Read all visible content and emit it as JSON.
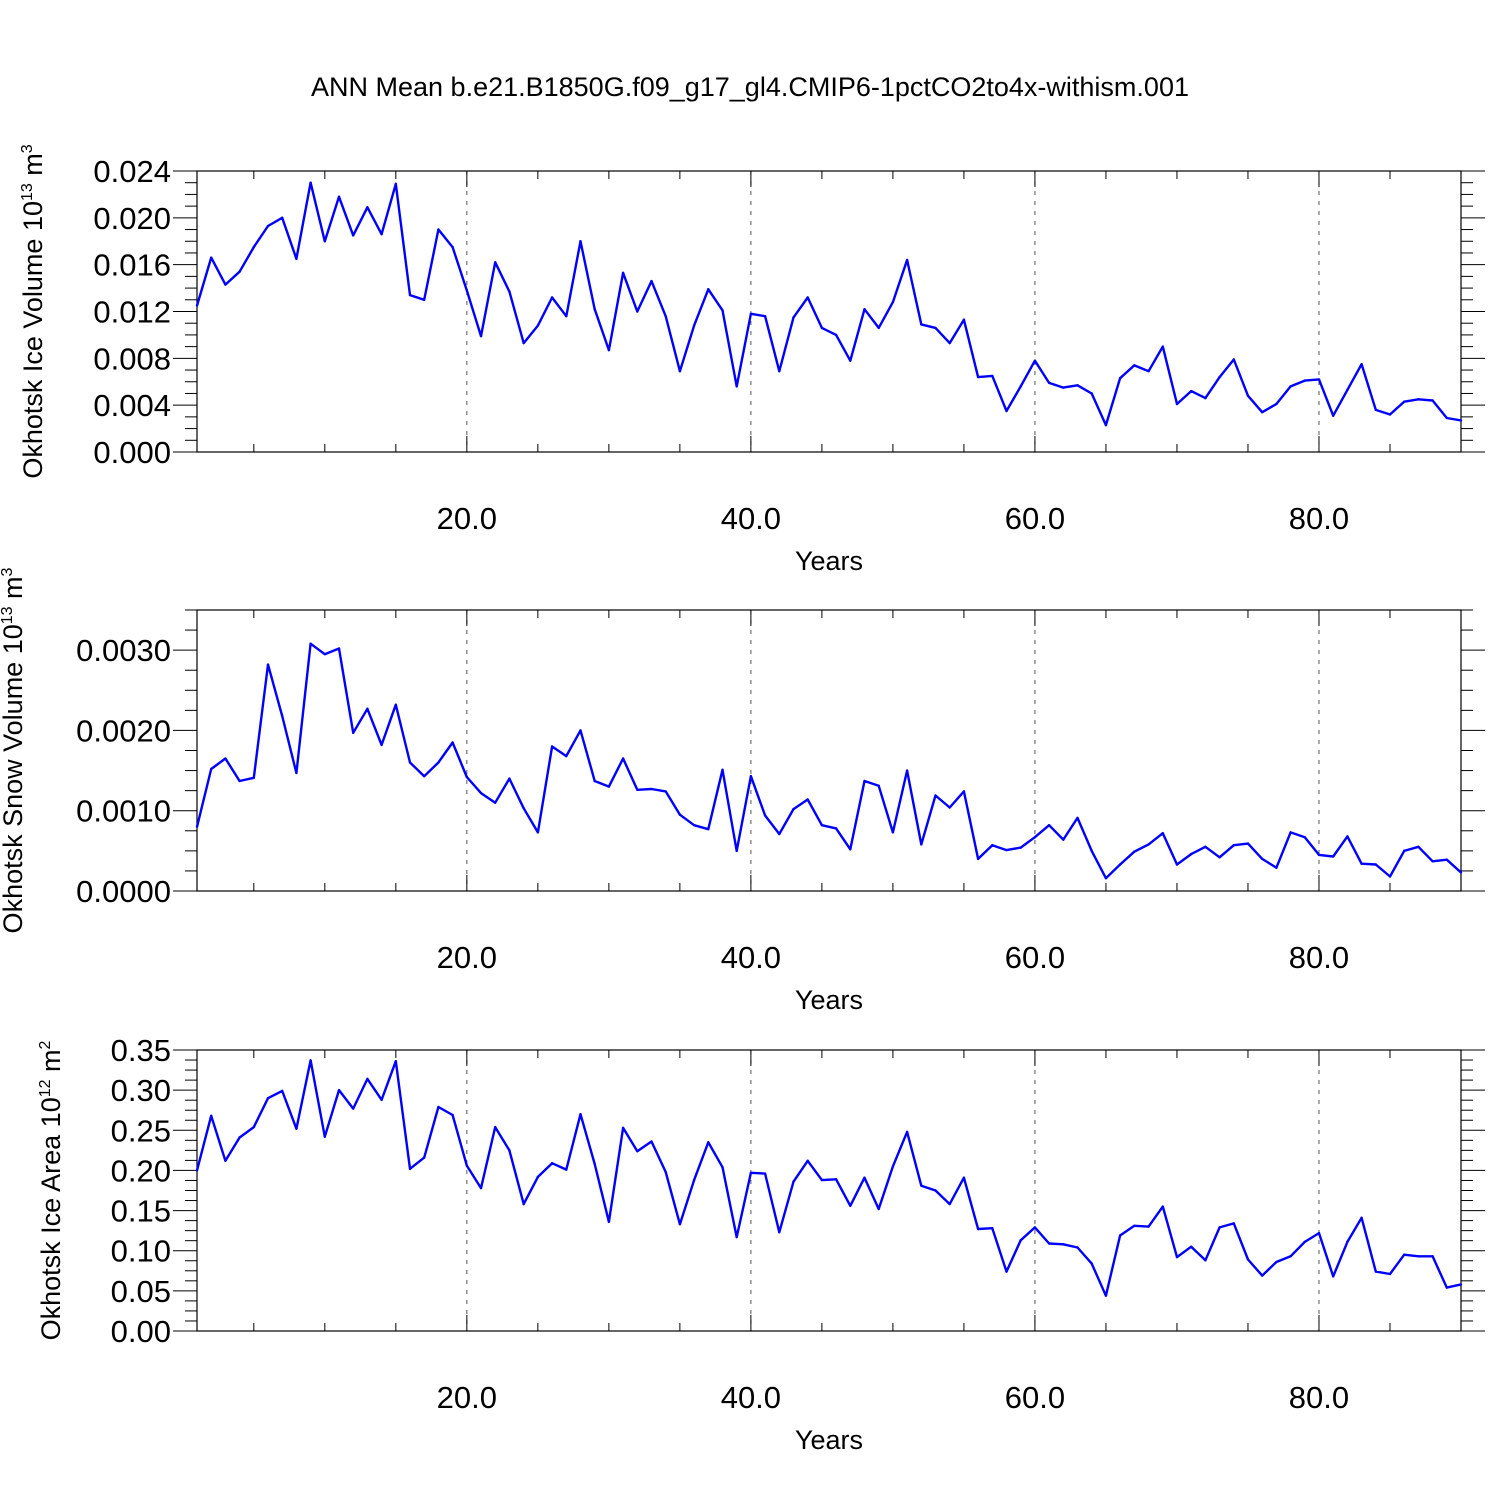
{
  "title": "ANN Mean b.e21.B1850G.f09_g17_gl4.CMIP6-1pctCO2to4x-withism.001",
  "colors": {
    "series": "#0000ff",
    "frame": "#000000",
    "grid": "#555555"
  },
  "chart_data": [
    {
      "type": "line",
      "ylabel": "Okhotsk Ice Volume 10",
      "ylabel_sup": "13",
      "ylabel_unit": "m",
      "ylabel_unit_sup": "3",
      "xlabel": "Years",
      "xlim": [
        1,
        90
      ],
      "ylim": [
        0,
        0.024
      ],
      "xticks": [
        20,
        40,
        60,
        80
      ],
      "xtick_labels": [
        "20.0",
        "40.0",
        "60.0",
        "80.0"
      ],
      "yticks": [
        0,
        0.004,
        0.008,
        0.012,
        0.016,
        0.02,
        0.024
      ],
      "ytick_labels": [
        "0.000",
        "0.004",
        "0.008",
        "0.012",
        "0.016",
        "0.020",
        "0.024"
      ],
      "grid": "vertical dashed at major x ticks",
      "x_start": 1,
      "values": [
        0.0125,
        0.0166,
        0.0143,
        0.0154,
        0.0175,
        0.0193,
        0.02,
        0.0165,
        0.023,
        0.018,
        0.0218,
        0.0185,
        0.0209,
        0.0186,
        0.0229,
        0.0134,
        0.013,
        0.019,
        0.0175,
        0.0138,
        0.0099,
        0.0162,
        0.0137,
        0.0093,
        0.0108,
        0.0132,
        0.0116,
        0.018,
        0.0122,
        0.0087,
        0.0153,
        0.012,
        0.0146,
        0.0116,
        0.0069,
        0.0108,
        0.0139,
        0.0121,
        0.0056,
        0.0118,
        0.0116,
        0.0069,
        0.0115,
        0.0132,
        0.0106,
        0.01,
        0.0078,
        0.0122,
        0.0106,
        0.0128,
        0.0164,
        0.0109,
        0.0106,
        0.0093,
        0.0113,
        0.0064,
        0.0065,
        0.0035,
        0.0056,
        0.0078,
        0.0059,
        0.0055,
        0.0057,
        0.005,
        0.0023,
        0.0063,
        0.0074,
        0.0069,
        0.009,
        0.0041,
        0.0052,
        0.0046,
        0.0064,
        0.0079,
        0.0048,
        0.0034,
        0.0041,
        0.0056,
        0.0061,
        0.0062,
        0.0031,
        0.0053,
        0.0075,
        0.0036,
        0.0032,
        0.0043,
        0.0045,
        0.0044,
        0.0029,
        0.0027
      ]
    },
    {
      "type": "line",
      "ylabel": "Okhotsk Snow Volume 10",
      "ylabel_sup": "13",
      "ylabel_unit": "m",
      "ylabel_unit_sup": "3",
      "xlabel": "Years",
      "xlim": [
        1,
        90
      ],
      "ylim": [
        0,
        0.0035
      ],
      "xticks": [
        20,
        40,
        60,
        80
      ],
      "xtick_labels": [
        "20.0",
        "40.0",
        "60.0",
        "80.0"
      ],
      "yticks": [
        0,
        0.001,
        0.002,
        0.003
      ],
      "ytick_labels": [
        "0.0000",
        "0.0010",
        "0.0020",
        "0.0030"
      ],
      "grid": "vertical dashed at major x ticks",
      "x_start": 1,
      "values": [
        0.0008,
        0.00152,
        0.00165,
        0.00137,
        0.00141,
        0.00282,
        0.00218,
        0.00147,
        0.00308,
        0.00295,
        0.00302,
        0.00197,
        0.00227,
        0.00182,
        0.00232,
        0.0016,
        0.00143,
        0.0016,
        0.00185,
        0.00142,
        0.00122,
        0.0011,
        0.0014,
        0.00103,
        0.00073,
        0.0018,
        0.00168,
        0.002,
        0.00137,
        0.0013,
        0.00165,
        0.00126,
        0.00127,
        0.00124,
        0.00095,
        0.00082,
        0.00077,
        0.00151,
        0.0005,
        0.00143,
        0.00094,
        0.00071,
        0.00102,
        0.00114,
        0.00082,
        0.00078,
        0.00052,
        0.00137,
        0.00131,
        0.00073,
        0.0015,
        0.00058,
        0.00119,
        0.00104,
        0.00124,
        0.0004,
        0.00057,
        0.00051,
        0.00054,
        0.00067,
        0.00082,
        0.00064,
        0.00091,
        0.0005,
        0.00016,
        0.00033,
        0.00049,
        0.00058,
        0.00072,
        0.00033,
        0.00046,
        0.00055,
        0.00042,
        0.00057,
        0.00059,
        0.0004,
        0.00029,
        0.00073,
        0.00067,
        0.00045,
        0.00043,
        0.00068,
        0.00034,
        0.00033,
        0.00018,
        0.0005,
        0.00055,
        0.00037,
        0.00039,
        0.00023
      ]
    },
    {
      "type": "line",
      "ylabel": "Okhotsk Ice Area 10",
      "ylabel_sup": "12",
      "ylabel_unit": "m",
      "ylabel_unit_sup": "2",
      "xlabel": "Years",
      "xlim": [
        1,
        90
      ],
      "ylim": [
        0,
        0.35
      ],
      "xticks": [
        20,
        40,
        60,
        80
      ],
      "xtick_labels": [
        "20.0",
        "40.0",
        "60.0",
        "80.0"
      ],
      "yticks": [
        0,
        0.05,
        0.1,
        0.15,
        0.2,
        0.25,
        0.3,
        0.35
      ],
      "ytick_labels": [
        "0.00",
        "0.05",
        "0.10",
        "0.15",
        "0.20",
        "0.25",
        "0.30",
        "0.35"
      ],
      "grid": "vertical dashed at major x ticks",
      "x_start": 1,
      "values": [
        0.2,
        0.268,
        0.212,
        0.241,
        0.254,
        0.29,
        0.299,
        0.252,
        0.337,
        0.242,
        0.3,
        0.277,
        0.314,
        0.288,
        0.336,
        0.202,
        0.216,
        0.279,
        0.269,
        0.206,
        0.178,
        0.254,
        0.225,
        0.158,
        0.192,
        0.209,
        0.201,
        0.27,
        0.208,
        0.136,
        0.253,
        0.224,
        0.236,
        0.198,
        0.133,
        0.188,
        0.235,
        0.204,
        0.117,
        0.197,
        0.196,
        0.123,
        0.186,
        0.212,
        0.188,
        0.189,
        0.156,
        0.191,
        0.152,
        0.205,
        0.248,
        0.181,
        0.175,
        0.158,
        0.191,
        0.127,
        0.128,
        0.074,
        0.113,
        0.129,
        0.109,
        0.108,
        0.104,
        0.084,
        0.044,
        0.119,
        0.131,
        0.13,
        0.155,
        0.092,
        0.105,
        0.088,
        0.129,
        0.134,
        0.089,
        0.069,
        0.086,
        0.093,
        0.111,
        0.122,
        0.068,
        0.111,
        0.141,
        0.074,
        0.071,
        0.095,
        0.093,
        0.093,
        0.054,
        0.058
      ]
    }
  ]
}
